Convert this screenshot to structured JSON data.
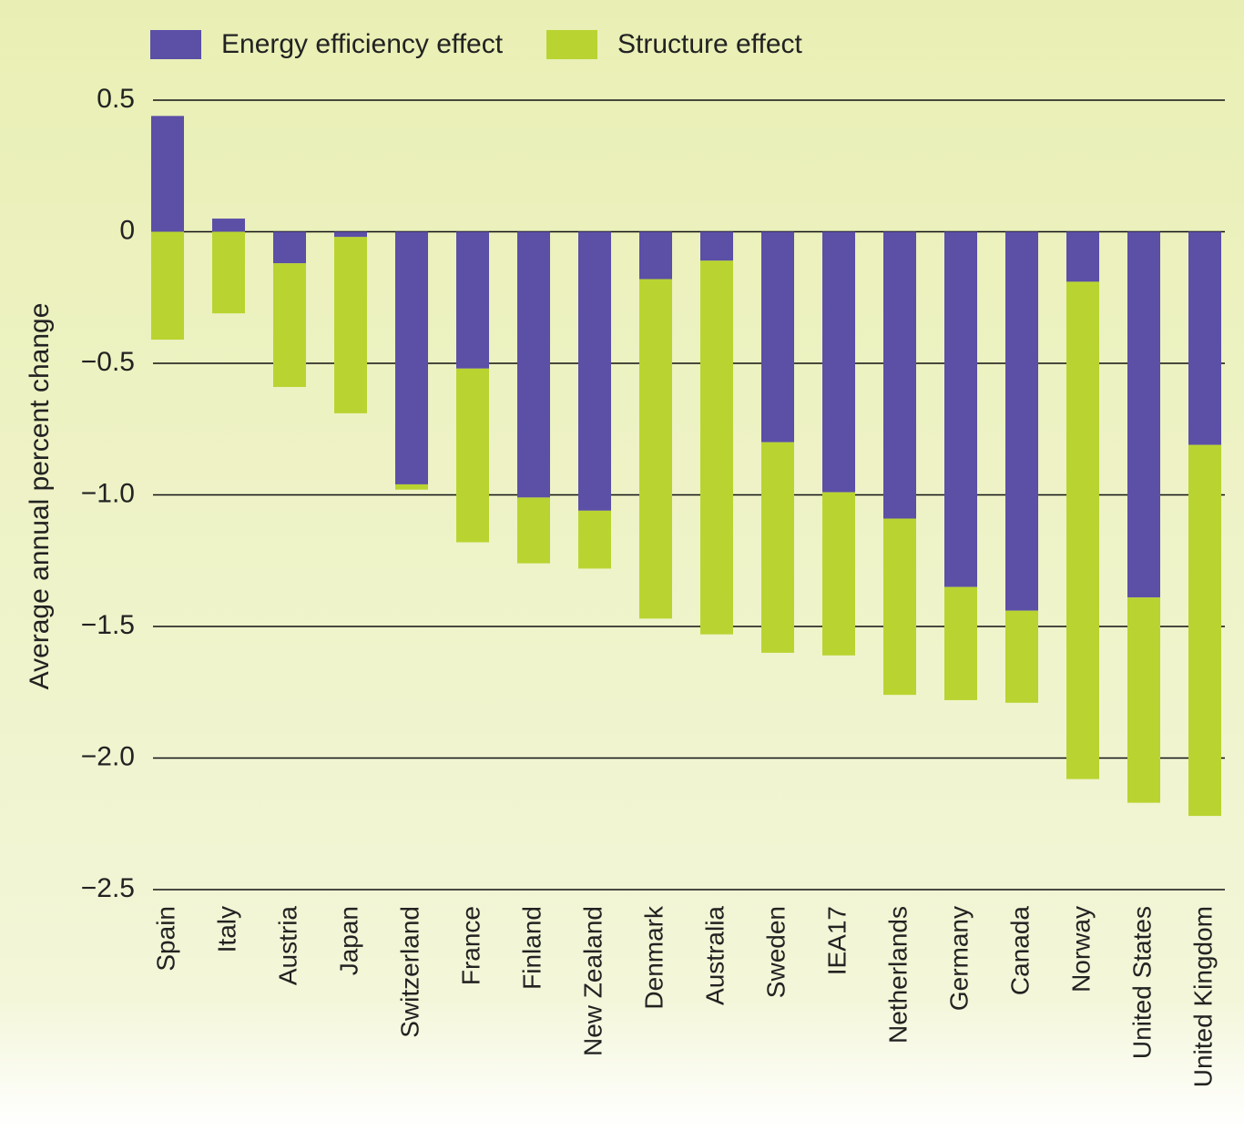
{
  "chart_data": {
    "type": "stacked_bar",
    "y_label": "Average annual percent change",
    "categories": [
      "Spain",
      "Italy",
      "Austria",
      "Japan",
      "Switzerland",
      "France",
      "Finland",
      "New Zealand",
      "Denmark",
      "Australia",
      "Sweden",
      "IEA17",
      "Netherlands",
      "Germany",
      "Canada",
      "Norway",
      "United States",
      "United Kingdom"
    ],
    "series": [
      {
        "name": "Energy efficiency effect",
        "color": "#5b4fa6",
        "values": [
          0.44,
          0.05,
          -0.12,
          -0.02,
          -0.96,
          -0.52,
          -1.01,
          -1.06,
          -0.18,
          -0.11,
          -0.8,
          -0.99,
          -1.09,
          -1.35,
          -1.44,
          -0.19,
          -1.39,
          -0.81
        ]
      },
      {
        "name": "Structure effect",
        "color": "#b9d431",
        "values": [
          -0.41,
          -0.31,
          -0.47,
          -0.67,
          -0.02,
          -0.66,
          -0.25,
          -0.22,
          -1.29,
          -1.42,
          -0.8,
          -0.62,
          -0.67,
          -0.43,
          -0.35,
          -1.89,
          -0.78,
          -1.41
        ]
      }
    ],
    "ylim": [
      -2.5,
      0.5
    ],
    "yticks": [
      0.5,
      0,
      {
        "value": -0.5,
        "label": "−0.5"
      },
      {
        "value": -1.0,
        "label": "−1.0"
      },
      {
        "value": -1.5,
        "label": "−1.5"
      },
      {
        "value": -2.0,
        "label": "−2.0"
      },
      {
        "value": -2.5,
        "label": "−2.5"
      }
    ],
    "grid": true
  }
}
